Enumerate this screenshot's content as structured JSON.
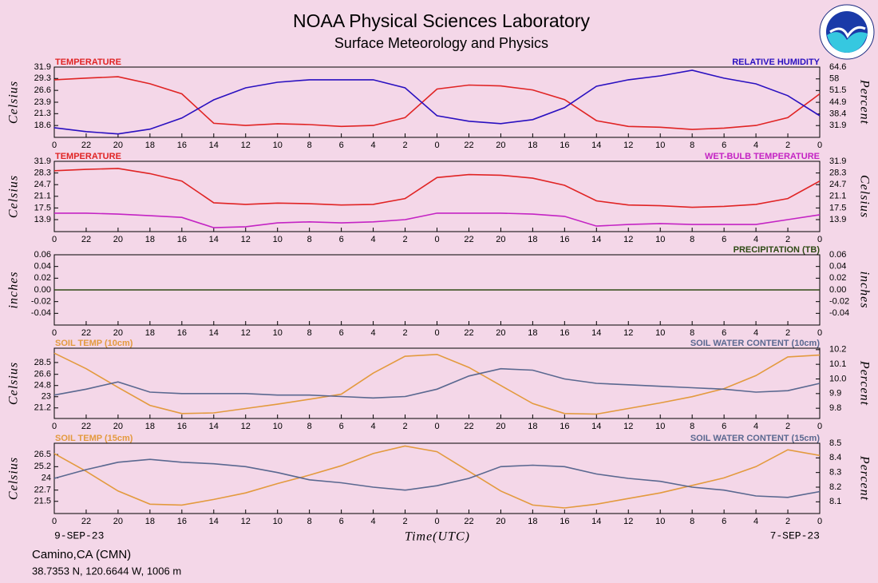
{
  "header": {
    "title": "NOAA Physical Sciences Laboratory",
    "subtitle": "Surface Meteorology and Physics"
  },
  "x_axis": {
    "xlim": [
      48,
      0
    ],
    "xticks": [
      {
        "value": 48,
        "label": "0"
      },
      {
        "value": 46,
        "label": "22"
      },
      {
        "value": 44,
        "label": "20"
      },
      {
        "value": 42,
        "label": "18"
      },
      {
        "value": 40,
        "label": "16"
      },
      {
        "value": 38,
        "label": "14"
      },
      {
        "value": 36,
        "label": "12"
      },
      {
        "value": 34,
        "label": "10"
      },
      {
        "value": 32,
        "label": "8"
      },
      {
        "value": 30,
        "label": "6"
      },
      {
        "value": 28,
        "label": "4"
      },
      {
        "value": 26,
        "label": "2"
      },
      {
        "value": 24,
        "label": "0"
      },
      22,
      20,
      18,
      16,
      14,
      12,
      10,
      8,
      6,
      4,
      2,
      0
    ],
    "xlabel": "Time(UTC)",
    "start_label": "9-SEP-23",
    "end_label": "7-SEP-23"
  },
  "chart_data": [
    {
      "type": "line",
      "ylabel": "Celsius",
      "y2label": "Percent",
      "ylim": [
        15.9,
        31.9
      ],
      "yticks": [
        31.9,
        29.3,
        26.6,
        23.9,
        21.3,
        18.6
      ],
      "y2lim": [
        25.3,
        64.6
      ],
      "y2ticks": [
        64.6,
        58.0,
        51.5,
        44.9,
        38.4,
        31.9
      ],
      "x": [
        48,
        46,
        44,
        42,
        40,
        38,
        36,
        34,
        32,
        30,
        28,
        26,
        24,
        22,
        20,
        18,
        16,
        14,
        12,
        10,
        8,
        6,
        4,
        2,
        0
      ],
      "series": [
        {
          "name": "TEMPERATURE",
          "color": "#e02424",
          "axis": "y",
          "values": [
            29.0,
            29.4,
            29.7,
            28.1,
            25.8,
            19.1,
            18.6,
            19.0,
            18.8,
            18.4,
            18.6,
            20.4,
            26.9,
            27.8,
            27.6,
            26.7,
            24.5,
            19.7,
            18.4,
            18.2,
            17.7,
            18.0,
            18.6,
            20.4,
            25.8
          ]
        },
        {
          "name": "RELATIVE HUMIDITY",
          "color": "#2a10c0",
          "axis": "y2",
          "values": [
            30.7,
            28.5,
            27.2,
            29.9,
            36.1,
            46.3,
            53.0,
            56.1,
            57.5,
            57.5,
            57.5,
            53.0,
            37.4,
            34.3,
            33.0,
            35.2,
            41.9,
            53.9,
            57.5,
            59.7,
            62.8,
            58.4,
            55.2,
            48.6,
            37.4
          ]
        }
      ]
    },
    {
      "type": "line",
      "ylabel": "Celsius",
      "y2label": "Celsius",
      "ylim": [
        10.2,
        31.9
      ],
      "yticks": [
        31.9,
        28.3,
        24.7,
        21.1,
        17.5,
        13.9
      ],
      "y2lim": [
        10.2,
        31.9
      ],
      "y2ticks": [
        31.9,
        28.3,
        24.7,
        21.1,
        17.5,
        13.9
      ],
      "x": [
        48,
        46,
        44,
        42,
        40,
        38,
        36,
        34,
        32,
        30,
        28,
        26,
        24,
        22,
        20,
        18,
        16,
        14,
        12,
        10,
        8,
        6,
        4,
        2,
        0
      ],
      "series": [
        {
          "name": "TEMPERATURE",
          "color": "#e02424",
          "axis": "y",
          "values": [
            29.0,
            29.4,
            29.7,
            28.1,
            25.8,
            19.1,
            18.6,
            19.0,
            18.8,
            18.4,
            18.6,
            20.4,
            26.9,
            27.8,
            27.6,
            26.7,
            24.5,
            19.7,
            18.4,
            18.2,
            17.7,
            18.0,
            18.6,
            20.4,
            25.8
          ]
        },
        {
          "name": "WET-BULB TEMPERATURE",
          "color": "#c424c4",
          "axis": "y2",
          "values": [
            15.9,
            15.9,
            15.6,
            15.1,
            14.6,
            11.4,
            11.7,
            12.9,
            13.2,
            12.9,
            13.2,
            13.9,
            15.9,
            15.9,
            15.9,
            15.6,
            14.9,
            11.9,
            12.4,
            12.7,
            12.4,
            12.4,
            12.4,
            13.9,
            15.4
          ]
        }
      ]
    },
    {
      "type": "line",
      "ylabel": "inches",
      "y2label": "inches",
      "ylim": [
        -0.06,
        0.06
      ],
      "yticks": [
        0.06,
        0.04,
        0.02,
        {
          "value": 0,
          "label": "0.00"
        },
        -0.02,
        -0.04
      ],
      "y2lim": [
        -0.06,
        0.06
      ],
      "y2ticks": [
        0.06,
        0.04,
        0.02,
        {
          "value": 0,
          "label": "0.00"
        },
        -0.02,
        -0.04
      ],
      "x": [
        48,
        0
      ],
      "series": [
        {
          "name": "PRECIPITATION (TB)",
          "color": "#2e4a14",
          "axis": "y",
          "values": [
            0,
            0
          ]
        }
      ]
    },
    {
      "type": "line",
      "ylabel": "Celsius",
      "y2label": "Percent",
      "ylim": [
        19.5,
        30.8
      ],
      "yticks": [
        28.5,
        26.6,
        24.8,
        23.0,
        21.2
      ],
      "y2lim": [
        9.73,
        10.21
      ],
      "y2ticks": [
        10.2,
        10.1,
        {
          "value": 10,
          "label": "10.0"
        },
        9.9,
        9.8
      ],
      "x": [
        48,
        46,
        44,
        42,
        40,
        38,
        36,
        34,
        32,
        30,
        28,
        26,
        24,
        22,
        20,
        18,
        16,
        14,
        12,
        10,
        8,
        6,
        4,
        2,
        0
      ],
      "series": [
        {
          "name": "SOIL TEMP (10cm)",
          "color": "#e39a3e",
          "axis": "y",
          "values": [
            30.0,
            27.5,
            24.5,
            21.6,
            20.3,
            20.4,
            21.1,
            21.8,
            22.6,
            23.4,
            26.8,
            29.5,
            29.8,
            27.7,
            24.8,
            21.9,
            20.3,
            20.2,
            21.1,
            22.0,
            23.0,
            24.3,
            26.4,
            29.4,
            29.7
          ]
        },
        {
          "name": "SOIL WATER CONTENT (10cm)",
          "color": "#5a6890",
          "axis": "y2",
          "values": [
            9.89,
            9.93,
            9.98,
            9.91,
            9.9,
            9.9,
            9.9,
            9.89,
            9.89,
            9.88,
            9.87,
            9.88,
            9.93,
            10.02,
            10.07,
            10.06,
            10.0,
            9.97,
            9.96,
            9.95,
            9.94,
            9.93,
            9.91,
            9.92,
            9.97
          ]
        }
      ]
    },
    {
      "type": "line",
      "ylabel": "Celsius",
      "y2label": "Percent",
      "ylim": [
        20.2,
        27.7
      ],
      "yticks": [
        26.5,
        25.2,
        24.0,
        22.7,
        21.5
      ],
      "y2lim": [
        8.02,
        8.5
      ],
      "y2ticks": [
        8.5,
        8.4,
        8.3,
        8.2,
        8.1
      ],
      "x": [
        48,
        46,
        44,
        42,
        40,
        38,
        36,
        34,
        32,
        30,
        28,
        26,
        24,
        22,
        20,
        18,
        16,
        14,
        12,
        10,
        8,
        6,
        4,
        2,
        0
      ],
      "series": [
        {
          "name": "SOIL TEMP (15cm)",
          "color": "#e39a3e",
          "axis": "y",
          "values": [
            26.6,
            24.7,
            22.6,
            21.2,
            21.1,
            21.7,
            22.4,
            23.4,
            24.3,
            25.3,
            26.6,
            27.4,
            26.8,
            24.7,
            22.6,
            21.1,
            20.8,
            21.2,
            21.8,
            22.4,
            23.2,
            24.0,
            25.2,
            27.0,
            26.4
          ]
        },
        {
          "name": "SOIL WATER CONTENT (15cm)",
          "color": "#5a6890",
          "axis": "y2",
          "values": [
            8.26,
            8.32,
            8.37,
            8.39,
            8.37,
            8.36,
            8.34,
            8.3,
            8.25,
            8.23,
            8.2,
            8.18,
            8.21,
            8.26,
            8.34,
            8.35,
            8.34,
            8.29,
            8.26,
            8.24,
            8.2,
            8.18,
            8.14,
            8.13,
            8.17
          ]
        }
      ]
    }
  ],
  "footer": {
    "station": "Camino,CA (CMN)",
    "location": "38.7353 N, 120.6644 W, 1006 m"
  }
}
